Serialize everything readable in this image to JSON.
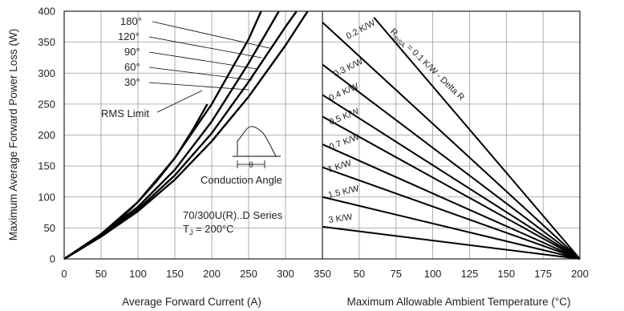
{
  "chart_data": [
    {
      "type": "line",
      "xlabel": "Average Forward Current (A)",
      "ylabel": "Maximum Average Forward Power Loss (W)",
      "xlim": [
        0,
        350
      ],
      "ylim": [
        0,
        400
      ],
      "x_ticks": [
        "0",
        "50",
        "100",
        "150",
        "200",
        "250",
        "300",
        "350"
      ],
      "y_ticks": [
        "0",
        "50",
        "100",
        "150",
        "200",
        "250",
        "300",
        "350",
        "400"
      ],
      "grid": true,
      "series": [
        {
          "name": "180°",
          "points": [
            [
              0,
              0
            ],
            [
              25,
              18
            ],
            [
              50,
              40
            ],
            [
              75,
              63
            ],
            [
              100,
              92
            ],
            [
              125,
              125
            ],
            [
              150,
              163
            ],
            [
              175,
              210
            ],
            [
              194,
              250
            ]
          ]
        },
        {
          "name": "120°",
          "points": [
            [
              0,
              0
            ],
            [
              50,
              40
            ],
            [
              100,
              92
            ],
            [
              150,
              163
            ],
            [
              200,
              250
            ],
            [
              250,
              355
            ],
            [
              267,
              400
            ]
          ]
        },
        {
          "name": "90°",
          "points": [
            [
              0,
              0
            ],
            [
              50,
              38
            ],
            [
              100,
              84
            ],
            [
              150,
              144
            ],
            [
              200,
              222
            ],
            [
              250,
              316
            ],
            [
              291,
              400
            ]
          ]
        },
        {
          "name": "60°",
          "points": [
            [
              0,
              0
            ],
            [
              50,
              37
            ],
            [
              100,
              80
            ],
            [
              150,
              135
            ],
            [
              200,
              203
            ],
            [
              250,
              286
            ],
            [
              300,
              375
            ],
            [
              315,
              400
            ]
          ]
        },
        {
          "name": "30°",
          "points": [
            [
              0,
              0
            ],
            [
              50,
              36
            ],
            [
              100,
              77
            ],
            [
              150,
              128
            ],
            [
              200,
              190
            ],
            [
              250,
              262
            ],
            [
              300,
              345
            ],
            [
              330,
              400
            ]
          ]
        }
      ],
      "annotations": {
        "curve_labels": [
          "180°",
          "120°",
          "90°",
          "60°",
          "30°"
        ],
        "rms_limit": "RMS Limit",
        "conduction_angle": "Conduction Angle",
        "theta": "θ",
        "series_note": "70/300U(R)..D Series",
        "tj_label": "T",
        "tj_sub": "J",
        "tj_value": " = 200°C"
      }
    },
    {
      "type": "line",
      "xlabel": "Maximum Allowable Ambient Temperature (°C)",
      "xlim": [
        25,
        200
      ],
      "ylim": [
        0,
        400
      ],
      "x_ticks": [
        "25",
        "50",
        "75",
        "100",
        "125",
        "150",
        "175",
        "200"
      ],
      "x_tick_labels_shown": [
        "350",
        "50",
        "75",
        "100",
        "125",
        "150",
        "175",
        "200"
      ],
      "grid": true,
      "series": [
        {
          "name": "0.2 K/W",
          "points": [
            [
              25,
              382
            ],
            [
              200,
              0
            ]
          ]
        },
        {
          "name": "0.3 K/W",
          "points": [
            [
              25,
              314
            ],
            [
              200,
              0
            ]
          ]
        },
        {
          "name": "0.4 K/W",
          "points": [
            [
              25,
              265
            ],
            [
              200,
              0
            ]
          ]
        },
        {
          "name": "0.5 K/W",
          "points": [
            [
              25,
              230
            ],
            [
              200,
              0
            ]
          ]
        },
        {
          "name": "0.7 K/W",
          "points": [
            [
              25,
              185
            ],
            [
              200,
              0
            ]
          ]
        },
        {
          "name": "1 K/W",
          "points": [
            [
              25,
              148
            ],
            [
              200,
              0
            ]
          ]
        },
        {
          "name": "1.5 K/W",
          "points": [
            [
              25,
              100
            ],
            [
              200,
              0
            ]
          ]
        },
        {
          "name": "3 K/W",
          "points": [
            [
              25,
              52
            ],
            [
              200,
              0
            ]
          ]
        },
        {
          "name": "R thSA = 0.1 K/W - Delta R",
          "points": [
            [
              60,
              390
            ],
            [
              200,
              0
            ]
          ]
        }
      ],
      "annotations": {
        "r_prefix": "R",
        "r_sub": "thSA",
        "r_suffix": " = 0.1 K/W",
        "delta_r": " - Delta R"
      }
    }
  ]
}
